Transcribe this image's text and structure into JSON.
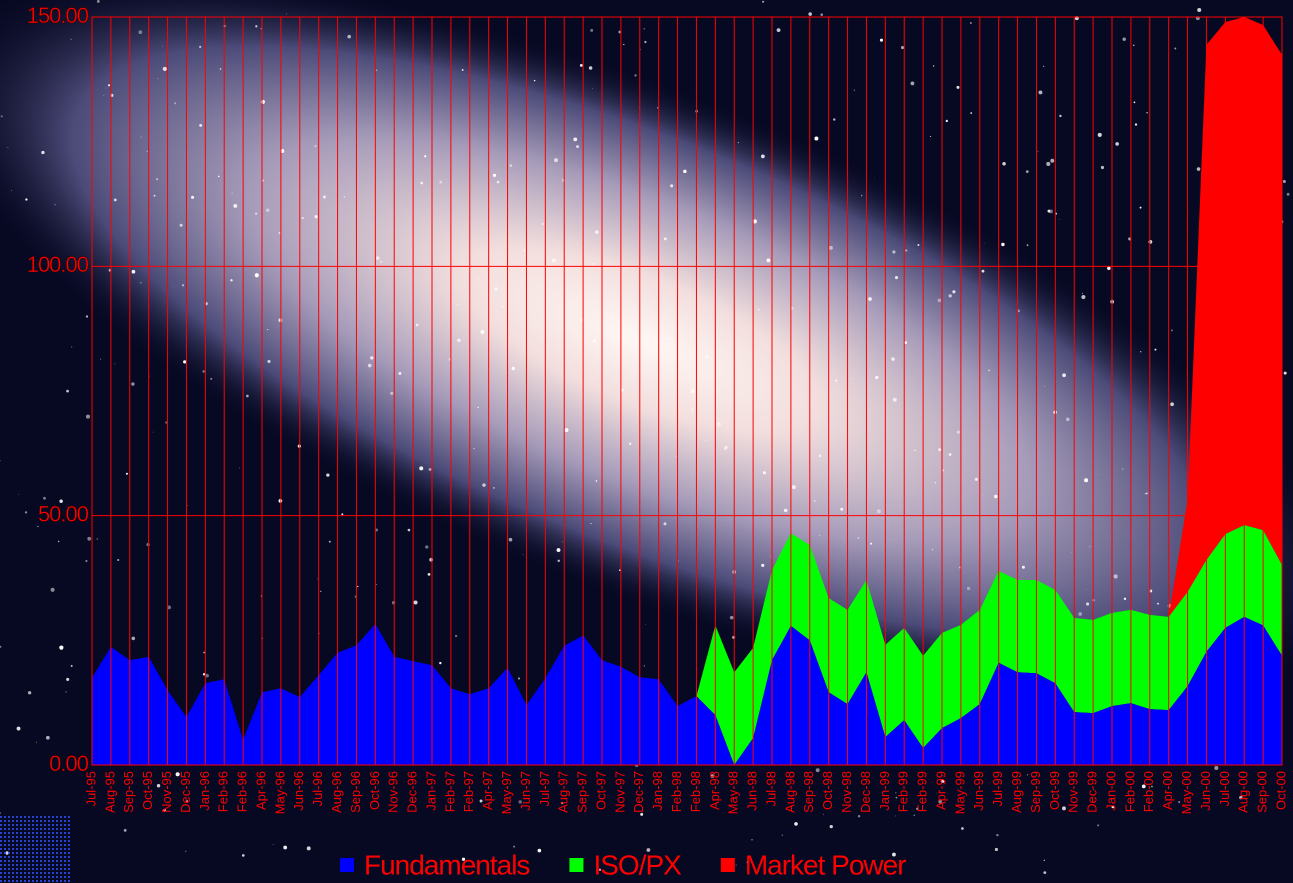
{
  "chart_data": {
    "type": "stacked_area",
    "categories": [
      "Jul-95",
      "Aug-95",
      "Sep-95",
      "Oct-95",
      "Nov-95",
      "Dec-95",
      "Jan-96",
      "Feb-96",
      "Feb-96",
      "Apr-96",
      "May-96",
      "Jun-96",
      "Jul-96",
      "Aug-96",
      "Sep-96",
      "Oct-96",
      "Nov-96",
      "Dec-96",
      "Jan-97",
      "Feb-97",
      "Feb-97",
      "Apr-97",
      "May-97",
      "Jun-97",
      "Jul-97",
      "Aug-97",
      "Sep-97",
      "Oct-97",
      "Nov-97",
      "Dec-97",
      "Jan-98",
      "Feb-98",
      "Feb-98",
      "Apr-98",
      "May-98",
      "Jun-98",
      "Jul-98",
      "Aug-98",
      "Sep-98",
      "Oct-98",
      "Nov-98",
      "Dec-98",
      "Jan-99",
      "Feb-99",
      "Feb-99",
      "Apr-99",
      "May-99",
      "Jun-99",
      "Jul-99",
      "Aug-99",
      "Sep-99",
      "Oct-99",
      "Nov-99",
      "Dec-99",
      "Jan-00",
      "Feb-00",
      "Feb-00",
      "Apr-00",
      "May-00",
      "Jun-00",
      "Jul-00",
      "Aug-00",
      "Sep-00",
      "Oct-00"
    ],
    "series": [
      {
        "name": "Fundamentals",
        "color": "#0000ff",
        "values": [
          17.5,
          23.7,
          21,
          21.7,
          15,
          9.6,
          16.4,
          17.2,
          5,
          14.6,
          15.4,
          13.6,
          18,
          22.5,
          24,
          28.3,
          21.7,
          20.8,
          20,
          15.4,
          14.2,
          15.4,
          19.5,
          12,
          17.4,
          23.9,
          26,
          21,
          19.7,
          17.6,
          17.2,
          11.8,
          13.8,
          10,
          0,
          5.4,
          21,
          27.9,
          25,
          14.6,
          12.2,
          18.6,
          5.6,
          9,
          3.4,
          7.4,
          9.4,
          12.2,
          20.5,
          18.6,
          18.4,
          16.4,
          10.6,
          10.4,
          11.8,
          12.4,
          11.2,
          11,
          15.8,
          22.7,
          27.5,
          29.7,
          28,
          21.9
        ]
      },
      {
        "name": "ISO/PX",
        "color": "#00ff00",
        "values": [
          0,
          0,
          0,
          0,
          0,
          0,
          0,
          0,
          0,
          0,
          0,
          0,
          0,
          0,
          0,
          0,
          0,
          0,
          0,
          0,
          0,
          0,
          0,
          0,
          0,
          0,
          0,
          0,
          0,
          0,
          0,
          0,
          0,
          18,
          18.6,
          18.1,
          18.1,
          18.6,
          19.1,
          18.9,
          18.9,
          18.5,
          18.5,
          18.5,
          18.5,
          19.1,
          18.7,
          18.9,
          18.4,
          18.5,
          18.7,
          18.7,
          18.9,
          18.7,
          18.7,
          18.7,
          18.9,
          18.7,
          18.9,
          18.4,
          18.8,
          18.4,
          19.1,
          18.2
        ]
      },
      {
        "name": "Market Power",
        "color": "#ff0000",
        "values": [
          0,
          0,
          0,
          0,
          0,
          0,
          0,
          0,
          0,
          0,
          0,
          0,
          0,
          0,
          0,
          0,
          0,
          0,
          0,
          0,
          0,
          0,
          0,
          0,
          0,
          0,
          0,
          0,
          0,
          0,
          0,
          0,
          0,
          0,
          0,
          0,
          0,
          0,
          0,
          0,
          0,
          0,
          0,
          0,
          0,
          0,
          0,
          0,
          0,
          0,
          0,
          0,
          0,
          0,
          0,
          0,
          0,
          0,
          18.4,
          103.3,
          102.7,
          101.9,
          101.3,
          102.3
        ]
      }
    ],
    "ylim": [
      0,
      150
    ],
    "yticks": [
      {
        "value": 0,
        "label": "0.00"
      },
      {
        "value": 50,
        "label": "50.00"
      },
      {
        "value": 100,
        "label": "100.00"
      },
      {
        "value": 150,
        "label": "150.00"
      }
    ],
    "grid": true,
    "grid_color": "#ff0000",
    "legend": "bottom"
  }
}
